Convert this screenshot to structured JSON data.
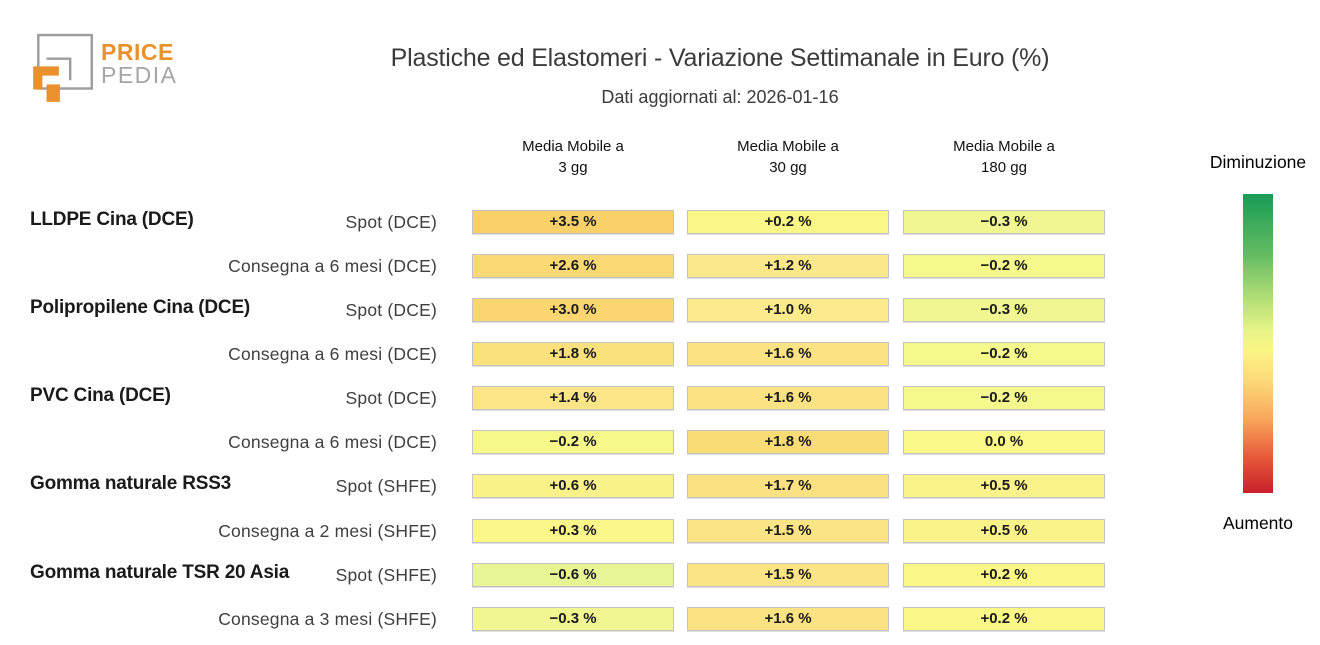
{
  "header": {
    "logo_line1": "PRICE",
    "logo_line2": "PEDIA"
  },
  "chart_data": {
    "type": "heatmap",
    "title": "Plastiche ed Elastomeri - Variazione Settimanale in Euro (%)",
    "subtitle": "Dati aggiornati al: 2026-01-16",
    "columns": [
      {
        "line1": "Media Mobile a",
        "line2": "3 gg"
      },
      {
        "line1": "Media Mobile a",
        "line2": "30 gg"
      },
      {
        "line1": "Media Mobile a",
        "line2": "180 gg"
      }
    ],
    "rows": [
      {
        "group": "LLDPE Cina (DCE)",
        "label": "Spot (DCE)",
        "values": [
          "+3.5 %",
          "+0.2 %",
          "−0.3 %"
        ],
        "values_pct": [
          3.5,
          0.2,
          -0.3
        ],
        "colors": [
          "#fad169",
          "#fbf787",
          "#f0f791"
        ]
      },
      {
        "group": "",
        "label": "Consegna a 6 mesi (DCE)",
        "values": [
          "+2.6 %",
          "+1.2 %",
          "−0.2 %"
        ],
        "values_pct": [
          2.6,
          1.2,
          -0.2
        ],
        "colors": [
          "#fad975",
          "#fbe88b",
          "#f4f88d"
        ]
      },
      {
        "group": "Polipropilene Cina (DCE)",
        "label": "Spot (DCE)",
        "values": [
          "+3.0 %",
          "+1.0 %",
          "−0.3 %"
        ],
        "values_pct": [
          3.0,
          1.0,
          -0.3
        ],
        "colors": [
          "#fad570",
          "#fbeb8d",
          "#f0f791"
        ]
      },
      {
        "group": "",
        "label": "Consegna a 6 mesi (DCE)",
        "values": [
          "+1.8 %",
          "+1.6 %",
          "−0.2 %"
        ],
        "values_pct": [
          1.8,
          1.6,
          -0.2
        ],
        "colors": [
          "#fbe07e",
          "#fbe283",
          "#f4f88d"
        ]
      },
      {
        "group": "PVC Cina (DCE)",
        "label": "Spot (DCE)",
        "values": [
          "+1.4 %",
          "+1.6 %",
          "−0.2 %"
        ],
        "values_pct": [
          1.4,
          1.6,
          -0.2
        ],
        "colors": [
          "#fbe587",
          "#fbe283",
          "#f4f88d"
        ]
      },
      {
        "group": "",
        "label": "Consegna a 6 mesi (DCE)",
        "values": [
          "−0.2 %",
          "+1.8 %",
          "0.0 %"
        ],
        "values_pct": [
          -0.2,
          1.8,
          0.0
        ],
        "colors": [
          "#f6f98a",
          "#fadc74",
          "#fbfa88"
        ]
      },
      {
        "group": "Gomma naturale RSS3",
        "label": "Spot (SHFE)",
        "values": [
          "+0.6 %",
          "+1.7 %",
          "+0.5 %"
        ],
        "values_pct": [
          0.6,
          1.7,
          0.5
        ],
        "colors": [
          "#fbf18a",
          "#fbe181",
          "#fbf28b"
        ]
      },
      {
        "group": "",
        "label": "Consegna a 2 mesi (SHFE)",
        "values": [
          "+0.3 %",
          "+1.5 %",
          "+0.5 %"
        ],
        "values_pct": [
          0.3,
          1.5,
          0.5
        ],
        "colors": [
          "#fbf689",
          "#fbe486",
          "#fbf28b"
        ]
      },
      {
        "group": "Gomma naturale TSR 20 Asia",
        "label": "Spot (SHFE)",
        "values": [
          "−0.6 %",
          "+1.5 %",
          "+0.2 %"
        ],
        "values_pct": [
          -0.6,
          1.5,
          0.2
        ],
        "colors": [
          "#e9f595",
          "#fbe486",
          "#fbf787"
        ]
      },
      {
        "group": "",
        "label": "Consegna a 3 mesi (SHFE)",
        "values": [
          "−0.3 %",
          "+1.6 %",
          "+0.2 %"
        ],
        "values_pct": [
          -0.3,
          1.6,
          0.2
        ],
        "colors": [
          "#f0f791",
          "#fbe283",
          "#fbf787"
        ]
      }
    ],
    "legend": {
      "top_label": "Diminuzione",
      "bottom_label": "Aumento",
      "gradient": [
        {
          "pos": 0.0,
          "color": "#189c56"
        },
        {
          "pos": 0.2,
          "color": "#63bb61"
        },
        {
          "pos": 0.35,
          "color": "#b2de76"
        },
        {
          "pos": 0.46,
          "color": "#e8f488"
        },
        {
          "pos": 0.52,
          "color": "#fbf583"
        },
        {
          "pos": 0.63,
          "color": "#fcd777"
        },
        {
          "pos": 0.75,
          "color": "#f8a85c"
        },
        {
          "pos": 0.87,
          "color": "#e95f3c"
        },
        {
          "pos": 1.0,
          "color": "#c9202a"
        }
      ]
    },
    "layout_hints": {
      "legend_position": "right-vertical",
      "grid": false,
      "value_range_displayed": [
        -0.6,
        3.5
      ]
    }
  }
}
